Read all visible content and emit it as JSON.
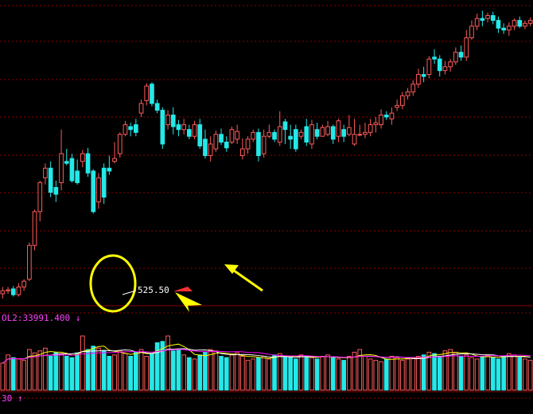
{
  "chart_data": {
    "type": "candlestick",
    "price_annotation": {
      "text": "525.50",
      "value": 525.5
    },
    "volume_readout": {
      "text": "OL2:33991.400 ↓"
    },
    "bottom_readout": {
      "text": "30 ↑"
    },
    "colors": {
      "background": "#000000",
      "up": "#ff5b5b",
      "down": "#25e8e8",
      "grid": "#8b0000",
      "ma_white": "#ffffff",
      "ma_yellow": "#ffff00",
      "ma_magenta": "#ff00ff",
      "highlight": "#ffff00",
      "arrow": "#ffff00"
    },
    "ohlc": [
      [
        155,
        158,
        162,
        150
      ],
      [
        158,
        159,
        162,
        155
      ],
      [
        160,
        154,
        163,
        152
      ],
      [
        154,
        162,
        166,
        152
      ],
      [
        162,
        168,
        170,
        158
      ],
      [
        170,
        205,
        208,
        168
      ],
      [
        205,
        240,
        242,
        200
      ],
      [
        240,
        270,
        272,
        230
      ],
      [
        275,
        285,
        290,
        268
      ],
      [
        285,
        260,
        292,
        255
      ],
      [
        265,
        258,
        272,
        250
      ],
      [
        270,
        300,
        325,
        262
      ],
      [
        292,
        290,
        305,
        288
      ],
      [
        295,
        272,
        300,
        270
      ],
      [
        282,
        270,
        294,
        268
      ],
      [
        292,
        300,
        304,
        286
      ],
      [
        300,
        280,
        306,
        276
      ],
      [
        282,
        240,
        284,
        238
      ],
      [
        250,
        275,
        280,
        243
      ],
      [
        285,
        255,
        290,
        248
      ],
      [
        285,
        282,
        298,
        278
      ],
      [
        292,
        295,
        312,
        290
      ],
      [
        300,
        320,
        322,
        296
      ],
      [
        320,
        330,
        334,
        318
      ],
      [
        328,
        325,
        332,
        318
      ],
      [
        330,
        322,
        336,
        318
      ],
      [
        342,
        352,
        356,
        338
      ],
      [
        355,
        370,
        373,
        350
      ],
      [
        372,
        352,
        374,
        349
      ],
      [
        352,
        345,
        356,
        342
      ],
      [
        345,
        310,
        348,
        305
      ],
      [
        330,
        340,
        345,
        325
      ],
      [
        340,
        328,
        348,
        320
      ],
      [
        330,
        325,
        335,
        318
      ],
      [
        325,
        330,
        336,
        320
      ],
      [
        325,
        318,
        330,
        315
      ],
      [
        318,
        330,
        334,
        315
      ],
      [
        330,
        308,
        336,
        305
      ],
      [
        315,
        298,
        325,
        295
      ],
      [
        298,
        310,
        318,
        292
      ],
      [
        305,
        320,
        324,
        302
      ],
      [
        320,
        312,
        326,
        309
      ],
      [
        312,
        306,
        318,
        302
      ],
      [
        312,
        325,
        328,
        310
      ],
      [
        315,
        323,
        330,
        310
      ],
      [
        298,
        305,
        316,
        294
      ],
      [
        305,
        315,
        318,
        300
      ],
      [
        315,
        322,
        325,
        312
      ],
      [
        322,
        298,
        326,
        292
      ],
      [
        300,
        318,
        325,
        296
      ],
      [
        318,
        322,
        330,
        316
      ],
      [
        322,
        315,
        325,
        312
      ],
      [
        312,
        328,
        344,
        308
      ],
      [
        333,
        325,
        336,
        310
      ],
      [
        318,
        315,
        330,
        305
      ],
      [
        325,
        305,
        330,
        302
      ],
      [
        318,
        322,
        325,
        315
      ],
      [
        328,
        312,
        336,
        308
      ],
      [
        310,
        330,
        335,
        305
      ],
      [
        325,
        318,
        332,
        315
      ],
      [
        318,
        327,
        330,
        320
      ],
      [
        320,
        328,
        334,
        318
      ],
      [
        328,
        315,
        330,
        310
      ],
      [
        318,
        334,
        336,
        312
      ],
      [
        325,
        318,
        330,
        312
      ],
      [
        320,
        327,
        340,
        318
      ],
      [
        310,
        320,
        336,
        308
      ],
      [
        320,
        320,
        330,
        318
      ],
      [
        320,
        322,
        332,
        316
      ],
      [
        322,
        330,
        336,
        318
      ],
      [
        330,
        332,
        338,
        322
      ],
      [
        330,
        340,
        346,
        326
      ],
      [
        340,
        338,
        344,
        335
      ],
      [
        336,
        342,
        348,
        330
      ],
      [
        348,
        350,
        356,
        344
      ],
      [
        350,
        360,
        364,
        346
      ],
      [
        360,
        364,
        368,
        356
      ],
      [
        364,
        372,
        376,
        360
      ],
      [
        372,
        382,
        388,
        368
      ],
      [
        382,
        380,
        390,
        374
      ],
      [
        382,
        398,
        401,
        378
      ],
      [
        400,
        398,
        408,
        393
      ],
      [
        398,
        386,
        402,
        380
      ],
      [
        386,
        390,
        396,
        382
      ],
      [
        390,
        395,
        398,
        385
      ],
      [
        395,
        405,
        410,
        392
      ],
      [
        405,
        400,
        412,
        396
      ],
      [
        400,
        420,
        428,
        396
      ],
      [
        420,
        432,
        438,
        418
      ],
      [
        432,
        440,
        445,
        428
      ],
      [
        440,
        438,
        448,
        432
      ],
      [
        440,
        443,
        446,
        436
      ],
      [
        443,
        438,
        447,
        434
      ],
      [
        438,
        430,
        442,
        425
      ],
      [
        430,
        428,
        435,
        424
      ],
      [
        428,
        432,
        436,
        422
      ],
      [
        432,
        438,
        440,
        428
      ],
      [
        438,
        432,
        442,
        430
      ],
      [
        432,
        435,
        438,
        429
      ],
      [
        435,
        438,
        441,
        432
      ]
    ],
    "volume": [
      40,
      52,
      48,
      46,
      44,
      60,
      55,
      58,
      62,
      50,
      56,
      54,
      50,
      48,
      55,
      80,
      60,
      65,
      62,
      58,
      50,
      52,
      58,
      54,
      50,
      56,
      60,
      50,
      54,
      70,
      72,
      80,
      58,
      60,
      52,
      48,
      46,
      52,
      56,
      60,
      58,
      50,
      48,
      52,
      55,
      50,
      44,
      46,
      48,
      50,
      46,
      52,
      54,
      50,
      48,
      46,
      52,
      50,
      48,
      46,
      50,
      52,
      48,
      46,
      44,
      50,
      56,
      60,
      50,
      46,
      44,
      42,
      46,
      50,
      48,
      44,
      46,
      48,
      50,
      52,
      56,
      54,
      50,
      58,
      60,
      56,
      50,
      52,
      48,
      46,
      50,
      52,
      48,
      46,
      50,
      54,
      52,
      48,
      46,
      44
    ],
    "ylim": [
      150,
      455
    ]
  }
}
